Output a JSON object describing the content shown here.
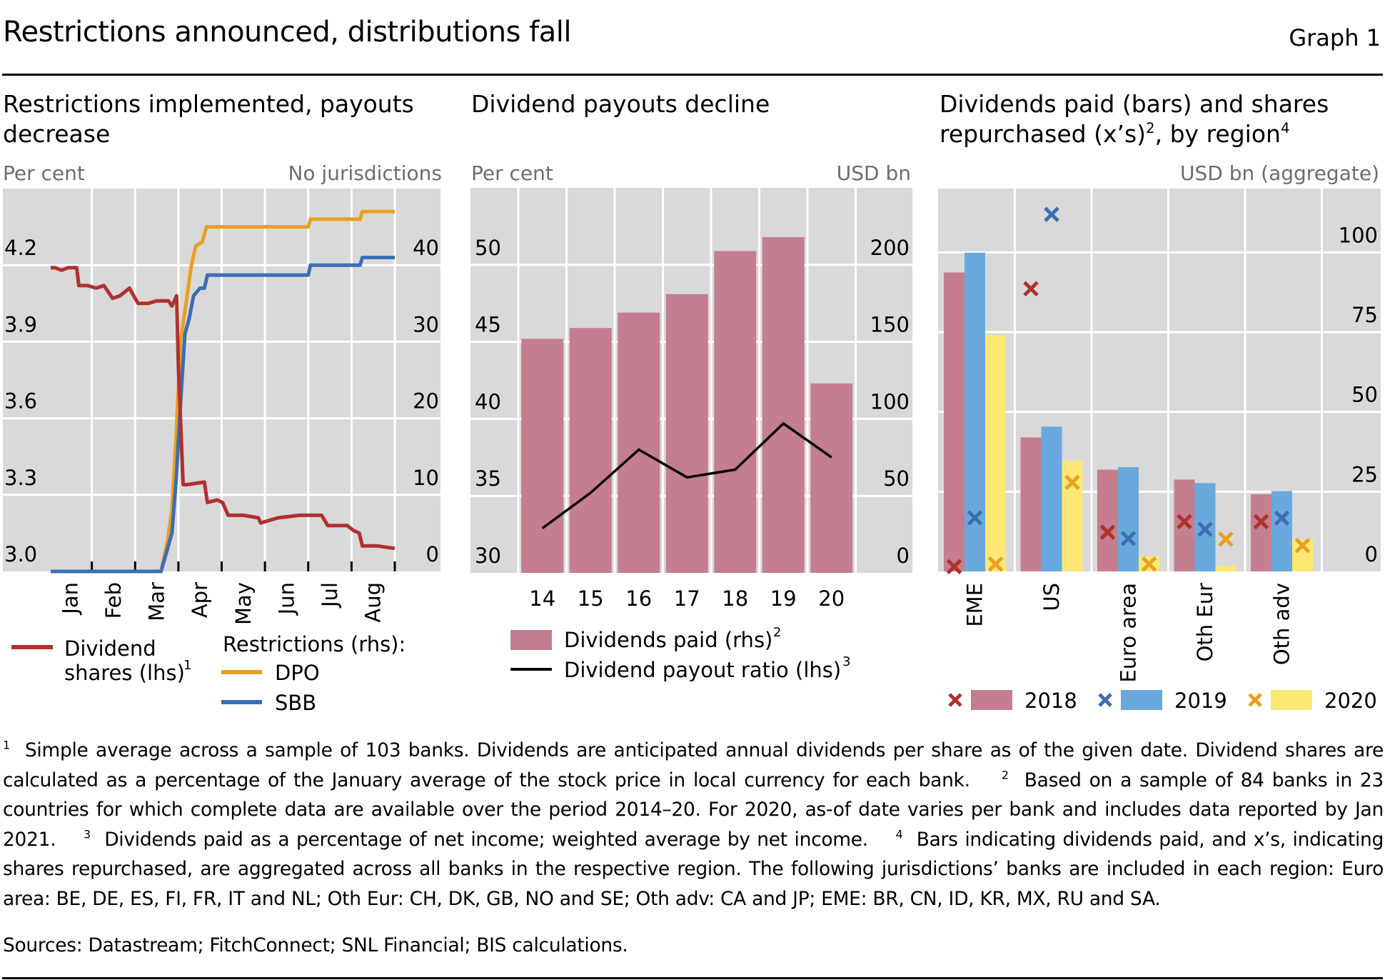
{
  "header": {
    "title": "Restrictions announced, distributions fall",
    "graph_label": "Graph 1"
  },
  "panels": [
    {
      "title": "Restrictions implemented, payouts decrease",
      "unit_left": "Per cent",
      "unit_right": "No jurisdictions"
    },
    {
      "title": "Dividend payouts decline",
      "unit_left": "Per cent",
      "unit_right": "USD bn"
    },
    {
      "title_main": "Dividends paid (bars) and shares repurchased (x’s)",
      "title_sup1": "2",
      "title_mid": ", by region",
      "title_sup2": "4",
      "unit_right": "USD bn (aggregate)"
    }
  ],
  "colors": {
    "dividend_shares": "#b0312f",
    "dpo": "#e8a022",
    "sbb": "#3c6eb4",
    "bars_main": "#c47e8f",
    "payout_line": "#000000",
    "y2018_bar": "#c47e8f",
    "y2019_bar": "#6aa9dd",
    "y2020_bar": "#fce872",
    "y2018_x": "#b0312f",
    "y2019_x": "#3c6eb4",
    "y2020_x": "#e8a022",
    "plot_bg": "#d9d9d9",
    "grid": "#ffffff"
  },
  "chart_data": [
    {
      "type": "line",
      "title": "Restrictions implemented, payouts decrease",
      "x_unit": "months of 2020 (0 = 1 Jan, 8 = 31 Aug)",
      "x_ticks": [
        "Jan",
        "Feb",
        "Mar",
        "Apr",
        "May",
        "Jun",
        "Jul",
        "Aug"
      ],
      "x_range": [
        0,
        8
      ],
      "y_left": {
        "label": "Per cent",
        "range": [
          3.0,
          4.5
        ],
        "ticks": [
          "3.0",
          "3.3",
          "3.6",
          "3.9",
          "4.2"
        ],
        "tick_values": [
          3.0,
          3.3,
          3.6,
          3.9,
          4.2
        ]
      },
      "y_right": {
        "label": "No jurisdictions",
        "range": [
          0,
          50
        ],
        "ticks": [
          "0",
          "10",
          "20",
          "30",
          "40"
        ],
        "tick_values": [
          0,
          10,
          20,
          30,
          40
        ]
      },
      "grid": true,
      "series": [
        {
          "name": "Dividend shares (lhs)",
          "axis": "left",
          "color_key": "dividend_shares",
          "x": [
            0.05,
            0.15,
            0.3,
            0.45,
            0.65,
            0.7,
            0.9,
            1.1,
            1.28,
            1.4,
            1.48,
            1.65,
            1.87,
            2.0,
            2.07,
            2.3,
            2.5,
            2.77,
            2.85,
            2.96,
            3.0,
            3.11,
            3.2,
            3.6,
            3.67,
            3.9,
            4.02,
            4.15,
            4.5,
            4.85,
            4.9,
            5.3,
            5.8,
            6.31,
            6.45,
            6.9,
            7.05,
            7.18,
            7.25,
            7.6,
            8.0
          ],
          "y": [
            4.19,
            4.19,
            4.18,
            4.19,
            4.19,
            4.12,
            4.12,
            4.11,
            4.12,
            4.09,
            4.07,
            4.08,
            4.11,
            4.07,
            4.05,
            4.05,
            4.06,
            4.06,
            4.04,
            4.08,
            3.8,
            3.34,
            3.34,
            3.35,
            3.27,
            3.28,
            3.27,
            3.22,
            3.22,
            3.21,
            3.19,
            3.21,
            3.22,
            3.22,
            3.18,
            3.18,
            3.16,
            3.15,
            3.1,
            3.1,
            3.09
          ]
        },
        {
          "name": "DPO",
          "axis": "right",
          "color_key": "dpo",
          "x": [
            0.05,
            2.6,
            2.75,
            2.85,
            2.95,
            3.05,
            3.15,
            3.3,
            3.4,
            3.55,
            3.65,
            6.0,
            6.05,
            7.2,
            7.25,
            8.0
          ],
          "y": [
            0,
            0,
            4,
            8,
            18,
            30,
            34,
            40,
            42.5,
            43,
            45,
            45,
            46,
            46,
            47,
            47
          ]
        },
        {
          "name": "SBB",
          "axis": "right",
          "color_key": "sbb",
          "x": [
            0.05,
            2.6,
            2.75,
            2.85,
            2.95,
            3.05,
            3.15,
            3.25,
            3.35,
            3.5,
            3.6,
            3.67,
            6.0,
            6.05,
            7.2,
            7.25,
            8.0
          ],
          "y": [
            0,
            0,
            3,
            5,
            12,
            22,
            31,
            33,
            36,
            37,
            37,
            38.7,
            38.7,
            40,
            40,
            41,
            41
          ]
        }
      ],
      "legend": {
        "dividend_label_line1": "Dividend",
        "dividend_label_line2": "shares (lhs)",
        "dividend_sup": "1",
        "restrictions_heading": "Restrictions (rhs):",
        "dpo_label": "DPO",
        "sbb_label": "SBB",
        "placement": "bottom"
      }
    },
    {
      "type": "bar",
      "title": "Dividend payouts decline",
      "categories": [
        "14",
        "15",
        "16",
        "17",
        "18",
        "19",
        "20"
      ],
      "y_left": {
        "label": "Per cent",
        "range": [
          30,
          55
        ],
        "ticks": [
          "30",
          "35",
          "40",
          "45",
          "50"
        ],
        "tick_values": [
          30,
          35,
          40,
          45,
          50
        ]
      },
      "y_right": {
        "label": "USD bn",
        "range": [
          0,
          250
        ],
        "ticks": [
          "0",
          "50",
          "100",
          "150",
          "200"
        ],
        "tick_values": [
          0,
          50,
          100,
          150,
          200
        ]
      },
      "grid": true,
      "series": [
        {
          "name": "Dividends paid (rhs)",
          "sup": "2",
          "kind": "bar",
          "axis": "right",
          "color_key": "bars_main",
          "values": [
            152,
            159,
            169,
            181,
            209,
            218,
            123
          ]
        },
        {
          "name": "Dividend payout ratio (lhs)",
          "sup": "3",
          "kind": "line",
          "axis": "left",
          "color_key": "payout_line",
          "values": [
            32.9,
            35.2,
            38.0,
            36.2,
            36.7,
            39.7,
            37.5
          ]
        }
      ],
      "legend_placement": "bottom"
    },
    {
      "type": "bar",
      "title": "Dividends paid (bars) and shares repurchased (x's), by region",
      "categories": [
        "EME",
        "US",
        "Euro area",
        "Oth Eur",
        "Oth adv"
      ],
      "y_right": {
        "label": "USD bn (aggregate)",
        "range": [
          0,
          120
        ],
        "ticks": [
          "0",
          "25",
          "50",
          "75",
          "100"
        ],
        "tick_values": [
          0,
          25,
          50,
          75,
          100
        ]
      },
      "grid": true,
      "series": [
        {
          "name": "2018",
          "bar_color_key": "y2018_bar",
          "x_color_key": "y2018_x",
          "dividends_paid": [
            93.7,
            42.0,
            31.9,
            28.8,
            24.2
          ],
          "shares_repurchased": [
            1.5,
            88.6,
            12.3,
            15.6,
            15.6
          ]
        },
        {
          "name": "2019",
          "bar_color_key": "y2019_bar",
          "x_color_key": "y2019_x",
          "dividends_paid": [
            99.9,
            45.4,
            32.7,
            27.7,
            25.2
          ],
          "shares_repurchased": [
            16.8,
            111.9,
            10.3,
            13.2,
            16.7
          ]
        },
        {
          "name": "2020",
          "bar_color_key": "y2020_bar",
          "x_color_key": "y2020_x",
          "dividends_paid": [
            74.1,
            34.6,
            4.7,
            1.7,
            9.9
          ],
          "shares_repurchased": [
            2.3,
            27.9,
            2.3,
            10.1,
            8.1
          ]
        }
      ],
      "legend_placement": "bottom"
    }
  ],
  "footnotes": {
    "n1": "1",
    "t1": "Simple average across a sample of 103 banks. Dividends are anticipated annual dividends per share as of the given date. Dividend shares are calculated as a percentage of the January average of the stock price in local currency for each bank.",
    "n2": "2",
    "t2": "Based on a sample of 84 banks in 23 countries for which complete data are available over the period 2014–20. For 2020, as-of date varies per bank and includes data reported by Jan 2021.",
    "n3": "3",
    "t3": "Dividends paid as a percentage of net income; weighted average by net income.",
    "n4": "4",
    "t4": "Bars indicating dividends paid, and x’s, indicating shares repurchased, are aggregated across all banks in the respective region. The following jurisdictions’ banks are included in each region: Euro area: BE, DE, ES, FI, FR, IT and NL; Oth Eur: CH, DK, GB, NO and SE; Oth adv: CA and JP; EME: BR, CN, ID, KR, MX, RU and SA."
  },
  "sources": "Sources: Datastream; FitchConnect; SNL Financial; BIS calculations."
}
